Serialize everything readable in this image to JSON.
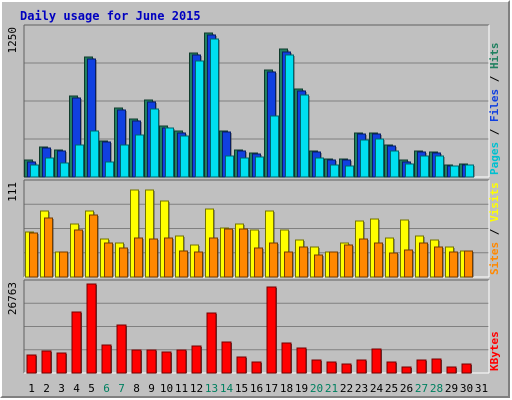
{
  "chart_data": {
    "type": "bar",
    "title": "Daily usage for June 2015",
    "categories": [
      "1",
      "2",
      "3",
      "4",
      "5",
      "6",
      "7",
      "8",
      "9",
      "10",
      "11",
      "12",
      "13",
      "14",
      "15",
      "16",
      "17",
      "18",
      "19",
      "20",
      "21",
      "22",
      "23",
      "24",
      "25",
      "26",
      "27",
      "28",
      "29",
      "30",
      "31"
    ],
    "weekend_days": [
      "6",
      "7",
      "13",
      "14",
      "20",
      "21",
      "27",
      "28"
    ],
    "panels": [
      {
        "id": "top",
        "max_label": "1250",
        "ylim": [
          0,
          1250
        ],
        "ylabel_parts": [
          {
            "text": "Pages",
            "color": "#00c0d0"
          },
          {
            "text": " / ",
            "color": "#000000"
          },
          {
            "text": "Files",
            "color": "#1040e0"
          },
          {
            "text": " / ",
            "color": "#000000"
          },
          {
            "text": "Hits",
            "color": "#208060"
          }
        ],
        "series": [
          {
            "name": "Hits",
            "color": "#208060",
            "values": [
              140,
              255,
              230,
              680,
              1010,
              300,
              580,
              490,
              650,
              430,
              390,
              1040,
              1210,
              390,
              230,
              200,
              900,
              1070,
              740,
              220,
              150,
              150,
              370,
              370,
              270,
              140,
              220,
              210,
              100,
              110,
              0
            ]
          },
          {
            "name": "Files",
            "color": "#1040e0",
            "values": [
              130,
              240,
              220,
              660,
              990,
              290,
              560,
              470,
              630,
              410,
              370,
              1020,
              1190,
              380,
              220,
              190,
              880,
              1050,
              720,
              210,
              140,
              140,
              360,
              360,
              260,
              130,
              210,
              200,
              90,
              100,
              0
            ]
          },
          {
            "name": "Pages",
            "color": "#00e0f0",
            "values": [
              100,
              160,
              120,
              270,
              390,
              130,
              270,
              350,
              570,
              410,
              340,
              970,
              1160,
              180,
              160,
              170,
              510,
              1020,
              690,
              160,
              100,
              90,
              310,
              320,
              220,
              110,
              180,
              180,
              90,
              100,
              0
            ]
          }
        ]
      },
      {
        "id": "middle",
        "max_label": "111",
        "ylim": [
          0,
          111
        ],
        "ylabel_parts": [
          {
            "text": "Sites",
            "color": "#ff8800"
          },
          {
            "text": " / ",
            "color": "#000000"
          },
          {
            "text": "Visits",
            "color": "#ffff00"
          }
        ],
        "series": [
          {
            "name": "Visits",
            "color": "#ffff00",
            "values": [
              53,
              78,
              30,
              62,
              78,
              45,
              40,
              103,
              103,
              90,
              48,
              38,
              80,
              58,
              62,
              55,
              78,
              55,
              44,
              36,
              30,
              40,
              66,
              68,
              46,
              67,
              48,
              44,
              36,
              31,
              0
            ]
          },
          {
            "name": "Sites",
            "color": "#ff8800",
            "values": [
              52,
              70,
              29,
              56,
              73,
              40,
              34,
              46,
              45,
              46,
              31,
              30,
              46,
              57,
              57,
              34,
              40,
              30,
              35,
              26,
              29,
              38,
              45,
              40,
              28,
              32,
              40,
              35,
              30,
              31,
              0
            ]
          }
        ]
      },
      {
        "id": "bottom",
        "max_label": "26763",
        "ylim": [
          0,
          26763
        ],
        "ylabel_parts": [
          {
            "text": "KBytes",
            "color": "#ff0000"
          }
        ],
        "series": [
          {
            "name": "KBytes",
            "color": "#ff0000",
            "values": [
              5220,
              6580,
              6010,
              18150,
              26400,
              8180,
              14400,
              6760,
              6770,
              6110,
              6850,
              8090,
              17750,
              9310,
              4630,
              3320,
              25630,
              9000,
              7500,
              3780,
              3250,
              2800,
              3910,
              7250,
              3200,
              1790,
              3810,
              4230,
              1790,
              2750,
              0
            ]
          }
        ]
      }
    ]
  }
}
